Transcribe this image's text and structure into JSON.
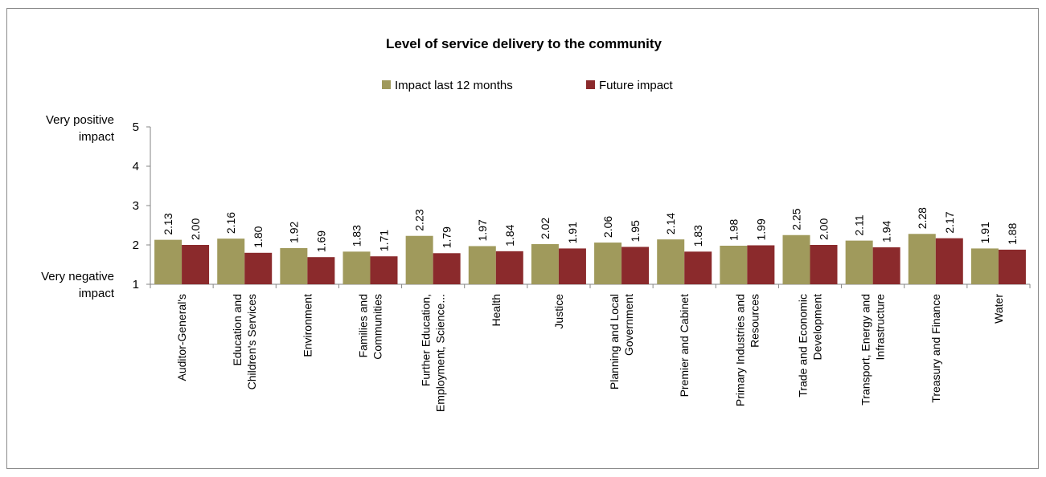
{
  "chart_data": {
    "type": "bar",
    "title": "Level of service delivery to the community",
    "categories": [
      [
        "Auditor-General's"
      ],
      [
        "Education and",
        "Children's Services"
      ],
      [
        "Environment"
      ],
      [
        "Families and",
        "Communities"
      ],
      [
        "Further Education,",
        "Employment, Science..."
      ],
      [
        "Health"
      ],
      [
        "Justice"
      ],
      [
        "Planning and Local",
        "Government"
      ],
      [
        "Premier and Cabinet"
      ],
      [
        "Primary Industries and",
        "Resources"
      ],
      [
        "Trade and Economic",
        "Development"
      ],
      [
        "Transport, Energy and",
        "Infrastructure"
      ],
      [
        "Treasury and Finance"
      ],
      [
        "Water"
      ]
    ],
    "series": [
      {
        "name": "Impact last 12 months",
        "color": "#A09A5C",
        "values": [
          2.13,
          2.16,
          1.92,
          1.83,
          2.23,
          1.97,
          2.02,
          2.06,
          2.14,
          1.98,
          2.25,
          2.11,
          2.28,
          1.91
        ],
        "labels": [
          "2.13",
          "2.16",
          "1.92",
          "1.83",
          "2.23",
          "1.97",
          "2.02",
          "2.06",
          "2.14",
          "1.98",
          "2.25",
          "2.11",
          "2.28",
          "1.91"
        ]
      },
      {
        "name": "Future impact",
        "color": "#8B2A2C",
        "values": [
          2.0,
          1.8,
          1.69,
          1.71,
          1.79,
          1.84,
          1.91,
          1.95,
          1.83,
          1.99,
          2.0,
          1.94,
          2.17,
          1.88
        ],
        "labels": [
          "2.00",
          "1.80",
          "1.69",
          "1.71",
          "1.79",
          "1.84",
          "1.91",
          "1.95",
          "1.83",
          "1.99",
          "2.00",
          "1.94",
          "2.17",
          "1.88"
        ]
      }
    ],
    "ylim": [
      1,
      5
    ],
    "yticks": [
      "1",
      "2",
      "3",
      "4",
      "5"
    ],
    "ylabel_top": [
      "Very positive",
      "impact"
    ],
    "ylabel_bottom": [
      "Very negative",
      "impact"
    ],
    "grid": false,
    "legend_position": "top"
  }
}
